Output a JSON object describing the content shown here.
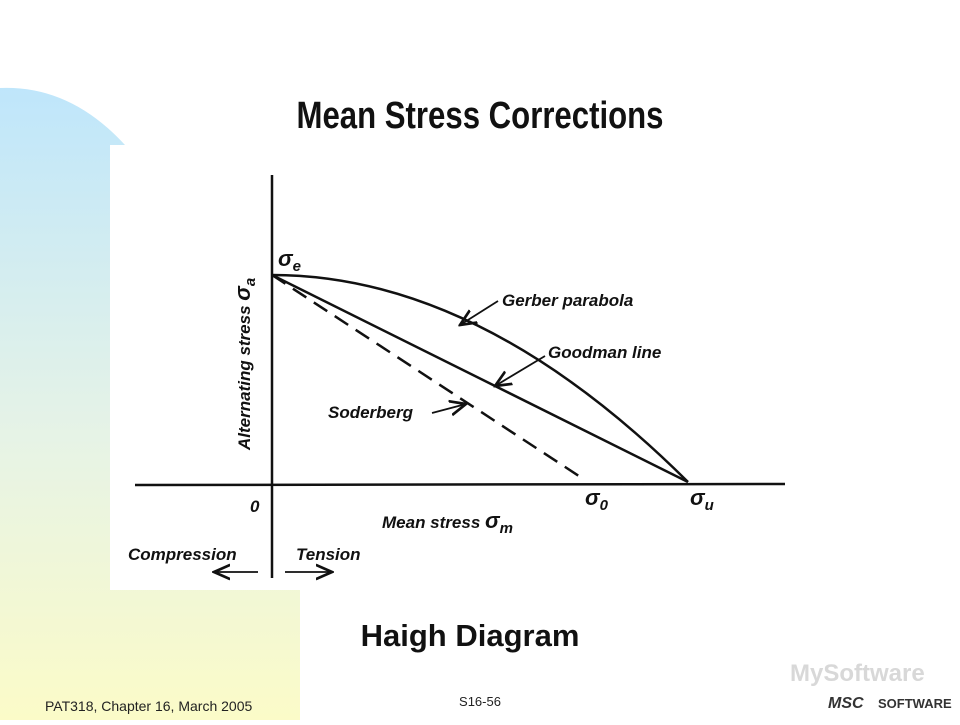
{
  "header": {
    "title": "Mean Stress Corrections"
  },
  "diagram": {
    "y_axis_label": {
      "text": "Alternating stress",
      "symbol": "σ",
      "subscript": "a"
    },
    "x_axis_label": {
      "text": "Mean stress",
      "symbol": "σ",
      "subscript": "m"
    },
    "origin": "0",
    "sigma_e": {
      "symbol": "σ",
      "subscript": "e"
    },
    "sigma_0": {
      "symbol": "σ",
      "subscript": "0"
    },
    "sigma_u": {
      "symbol": "σ",
      "subscript": "u"
    },
    "curves": [
      {
        "label": "Gerber parabola"
      },
      {
        "label": "Goodman line"
      },
      {
        "label": "Soderberg"
      }
    ],
    "compression": "Compression",
    "tension": "Tension"
  },
  "caption": "Haigh Diagram",
  "footer": {
    "left": "PAT318, Chapter 16, March 2005",
    "center": "S16-56",
    "watermark": "MySoftware",
    "logo_left": "MSC",
    "logo_right": "SOFTWARE"
  }
}
